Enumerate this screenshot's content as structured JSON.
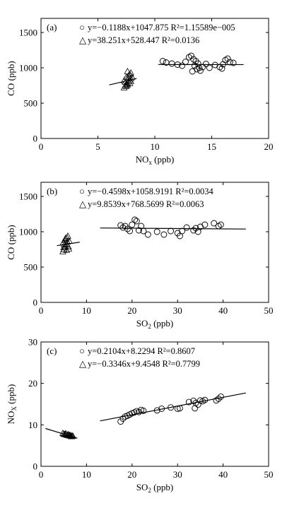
{
  "chart_data": [
    {
      "type": "scatter",
      "panel_label": "(a)",
      "xlabel": "NO",
      "xlabel_sub": "x",
      "xlabel_unit": "(ppb)",
      "ylabel": "CO (ppb)",
      "xlim": [
        0,
        20
      ],
      "ylim": [
        0,
        1700
      ],
      "xticks": [
        0,
        5,
        10,
        15,
        20
      ],
      "yticks": [
        0,
        500,
        1000,
        1500
      ],
      "series": [
        {
          "marker": "circle",
          "equation": "y=−0.1188x+1047.875  R²=1.15589e−005",
          "fit": {
            "slope": -0.1188,
            "intercept": 1047.875,
            "x_range": [
              10.3,
              17.8
            ]
          },
          "points": [
            [
              10.7,
              1095
            ],
            [
              11.0,
              1075
            ],
            [
              11.5,
              1060
            ],
            [
              12.0,
              1045
            ],
            [
              12.4,
              1030
            ],
            [
              12.7,
              1085
            ],
            [
              13.0,
              1150
            ],
            [
              13.2,
              1170
            ],
            [
              13.4,
              1120
            ],
            [
              13.6,
              1095
            ],
            [
              13.8,
              1060
            ],
            [
              13.5,
              1030
            ],
            [
              13.7,
              980
            ],
            [
              13.9,
              1000
            ],
            [
              14.0,
              960
            ],
            [
              14.2,
              1010
            ],
            [
              14.5,
              1055
            ],
            [
              14.8,
              1000
            ],
            [
              15.3,
              1040
            ],
            [
              15.7,
              1010
            ],
            [
              16.0,
              1050
            ],
            [
              16.2,
              1110
            ],
            [
              16.4,
              1130
            ],
            [
              16.6,
              1080
            ],
            [
              16.9,
              1070
            ],
            [
              15.9,
              990
            ],
            [
              13.3,
              950
            ]
          ]
        },
        {
          "marker": "triangle",
          "equation": "y=38.251x+528.447  R²=0.0136",
          "fit": {
            "slope": 38.251,
            "intercept": 528.447,
            "x_range": [
              6.0,
              8.4
            ]
          },
          "points": [
            [
              7.3,
              720
            ],
            [
              7.4,
              745
            ],
            [
              7.5,
              770
            ],
            [
              7.6,
              790
            ],
            [
              7.7,
              810
            ],
            [
              7.8,
              830
            ],
            [
              7.9,
              850
            ],
            [
              7.5,
              870
            ],
            [
              7.7,
              890
            ],
            [
              7.8,
              910
            ],
            [
              7.9,
              930
            ],
            [
              7.6,
              950
            ],
            [
              7.4,
              800
            ],
            [
              7.6,
              760
            ],
            [
              7.8,
              780
            ],
            [
              7.5,
              740
            ],
            [
              7.9,
              810
            ],
            [
              7.7,
              850
            ],
            [
              7.3,
              820
            ],
            [
              8.0,
              870
            ]
          ]
        }
      ]
    },
    {
      "type": "scatter",
      "panel_label": "(b)",
      "xlabel": "SO",
      "xlabel_sub": "2",
      "xlabel_unit": "(ppb)",
      "ylabel": "CO (ppb)",
      "xlim": [
        0,
        50
      ],
      "ylim": [
        0,
        1700
      ],
      "xticks": [
        0,
        10,
        20,
        30,
        40,
        50
      ],
      "yticks": [
        0,
        500,
        1000,
        1500
      ],
      "series": [
        {
          "marker": "circle",
          "equation": "y=−0.4598x+1058.9191  R²=0.0034",
          "fit": {
            "slope": -0.4598,
            "intercept": 1058.9191,
            "x_range": [
              13.0,
              45.0
            ]
          },
          "points": [
            [
              17.5,
              1090
            ],
            [
              18.0,
              1060
            ],
            [
              18.5,
              1080
            ],
            [
              19.0,
              1040
            ],
            [
              19.5,
              1010
            ],
            [
              20.0,
              1100
            ],
            [
              20.6,
              1170
            ],
            [
              21.0,
              1150
            ],
            [
              21.5,
              1020
            ],
            [
              22.0,
              1080
            ],
            [
              22.5,
              1010
            ],
            [
              23.5,
              960
            ],
            [
              25.5,
              1000
            ],
            [
              27.0,
              960
            ],
            [
              28.5,
              1010
            ],
            [
              30.0,
              980
            ],
            [
              30.5,
              940
            ],
            [
              31.0,
              1010
            ],
            [
              32.0,
              1060
            ],
            [
              33.5,
              1020
            ],
            [
              34.0,
              1050
            ],
            [
              34.5,
              1000
            ],
            [
              35.0,
              1070
            ],
            [
              36.0,
              1100
            ],
            [
              38.0,
              1120
            ],
            [
              39.0,
              1080
            ],
            [
              39.5,
              1100
            ]
          ]
        },
        {
          "marker": "triangle",
          "equation": "y=9.8539x+768.5699  R²=0.0063",
          "fit": {
            "slope": 9.8539,
            "intercept": 768.5699,
            "x_range": [
              3.5,
              8.5
            ]
          },
          "points": [
            [
              4.8,
              720
            ],
            [
              5.0,
              750
            ],
            [
              5.2,
              780
            ],
            [
              5.4,
              800
            ],
            [
              5.6,
              830
            ],
            [
              5.8,
              860
            ],
            [
              5.3,
              880
            ],
            [
              5.5,
              900
            ],
            [
              5.7,
              920
            ],
            [
              5.9,
              940
            ],
            [
              6.0,
              790
            ],
            [
              6.1,
              760
            ],
            [
              5.1,
              820
            ],
            [
              4.9,
              850
            ],
            [
              5.6,
              740
            ],
            [
              6.2,
              870
            ],
            [
              5.4,
              910
            ],
            [
              5.0,
              780
            ]
          ]
        }
      ]
    },
    {
      "type": "scatter",
      "panel_label": "(c)",
      "xlabel": "SO",
      "xlabel_sub": "2",
      "xlabel_unit": "(ppb)",
      "ylabel": "NO",
      "ylabel_sub": "X",
      "ylabel_unit": "(ppb)",
      "xlim": [
        0,
        50
      ],
      "ylim": [
        0,
        30
      ],
      "xticks": [
        0,
        10,
        20,
        30,
        40,
        50
      ],
      "yticks": [
        0,
        10,
        20,
        30
      ],
      "series": [
        {
          "marker": "circle",
          "equation": "y=0.2104x+8.2294  R²=0.8607",
          "fit": {
            "slope": 0.2104,
            "intercept": 8.2294,
            "x_range": [
              13.0,
              45.0
            ]
          },
          "points": [
            [
              17.5,
              10.8
            ],
            [
              18.0,
              11.5
            ],
            [
              18.5,
              12.0
            ],
            [
              19.0,
              12.2
            ],
            [
              19.5,
              12.5
            ],
            [
              20.0,
              12.8
            ],
            [
              20.5,
              13.0
            ],
            [
              21.0,
              13.3
            ],
            [
              21.5,
              13.1
            ],
            [
              22.0,
              13.6
            ],
            [
              22.5,
              13.4
            ],
            [
              25.5,
              13.5
            ],
            [
              26.5,
              13.9
            ],
            [
              28.5,
              14.2
            ],
            [
              30.0,
              13.9
            ],
            [
              30.5,
              14.0
            ],
            [
              32.5,
              15.5
            ],
            [
              33.5,
              15.8
            ],
            [
              34.0,
              15.3
            ],
            [
              34.5,
              14.9
            ],
            [
              35.0,
              15.9
            ],
            [
              35.5,
              15.7
            ],
            [
              36.0,
              16.0
            ],
            [
              38.5,
              15.9
            ],
            [
              39.0,
              16.3
            ],
            [
              39.5,
              16.8
            ],
            [
              33.8,
              14.0
            ]
          ]
        },
        {
          "marker": "triangle",
          "equation": "y=−0.3346x+9.4548  R²=0.7799",
          "fit": {
            "slope": -0.3346,
            "intercept": 9.4548,
            "x_range": [
              1.0,
              8.0
            ]
          },
          "points": [
            [
              4.8,
              8.0
            ],
            [
              5.0,
              7.8
            ],
            [
              5.2,
              7.7
            ],
            [
              5.4,
              7.9
            ],
            [
              5.6,
              7.6
            ],
            [
              5.8,
              7.5
            ],
            [
              6.0,
              7.7
            ],
            [
              6.2,
              7.4
            ],
            [
              6.4,
              7.5
            ],
            [
              6.6,
              7.3
            ],
            [
              6.8,
              7.4
            ],
            [
              5.5,
              7.8
            ],
            [
              5.9,
              7.6
            ],
            [
              6.3,
              7.5
            ],
            [
              6.7,
              7.2
            ],
            [
              7.0,
              7.3
            ]
          ]
        }
      ]
    }
  ]
}
